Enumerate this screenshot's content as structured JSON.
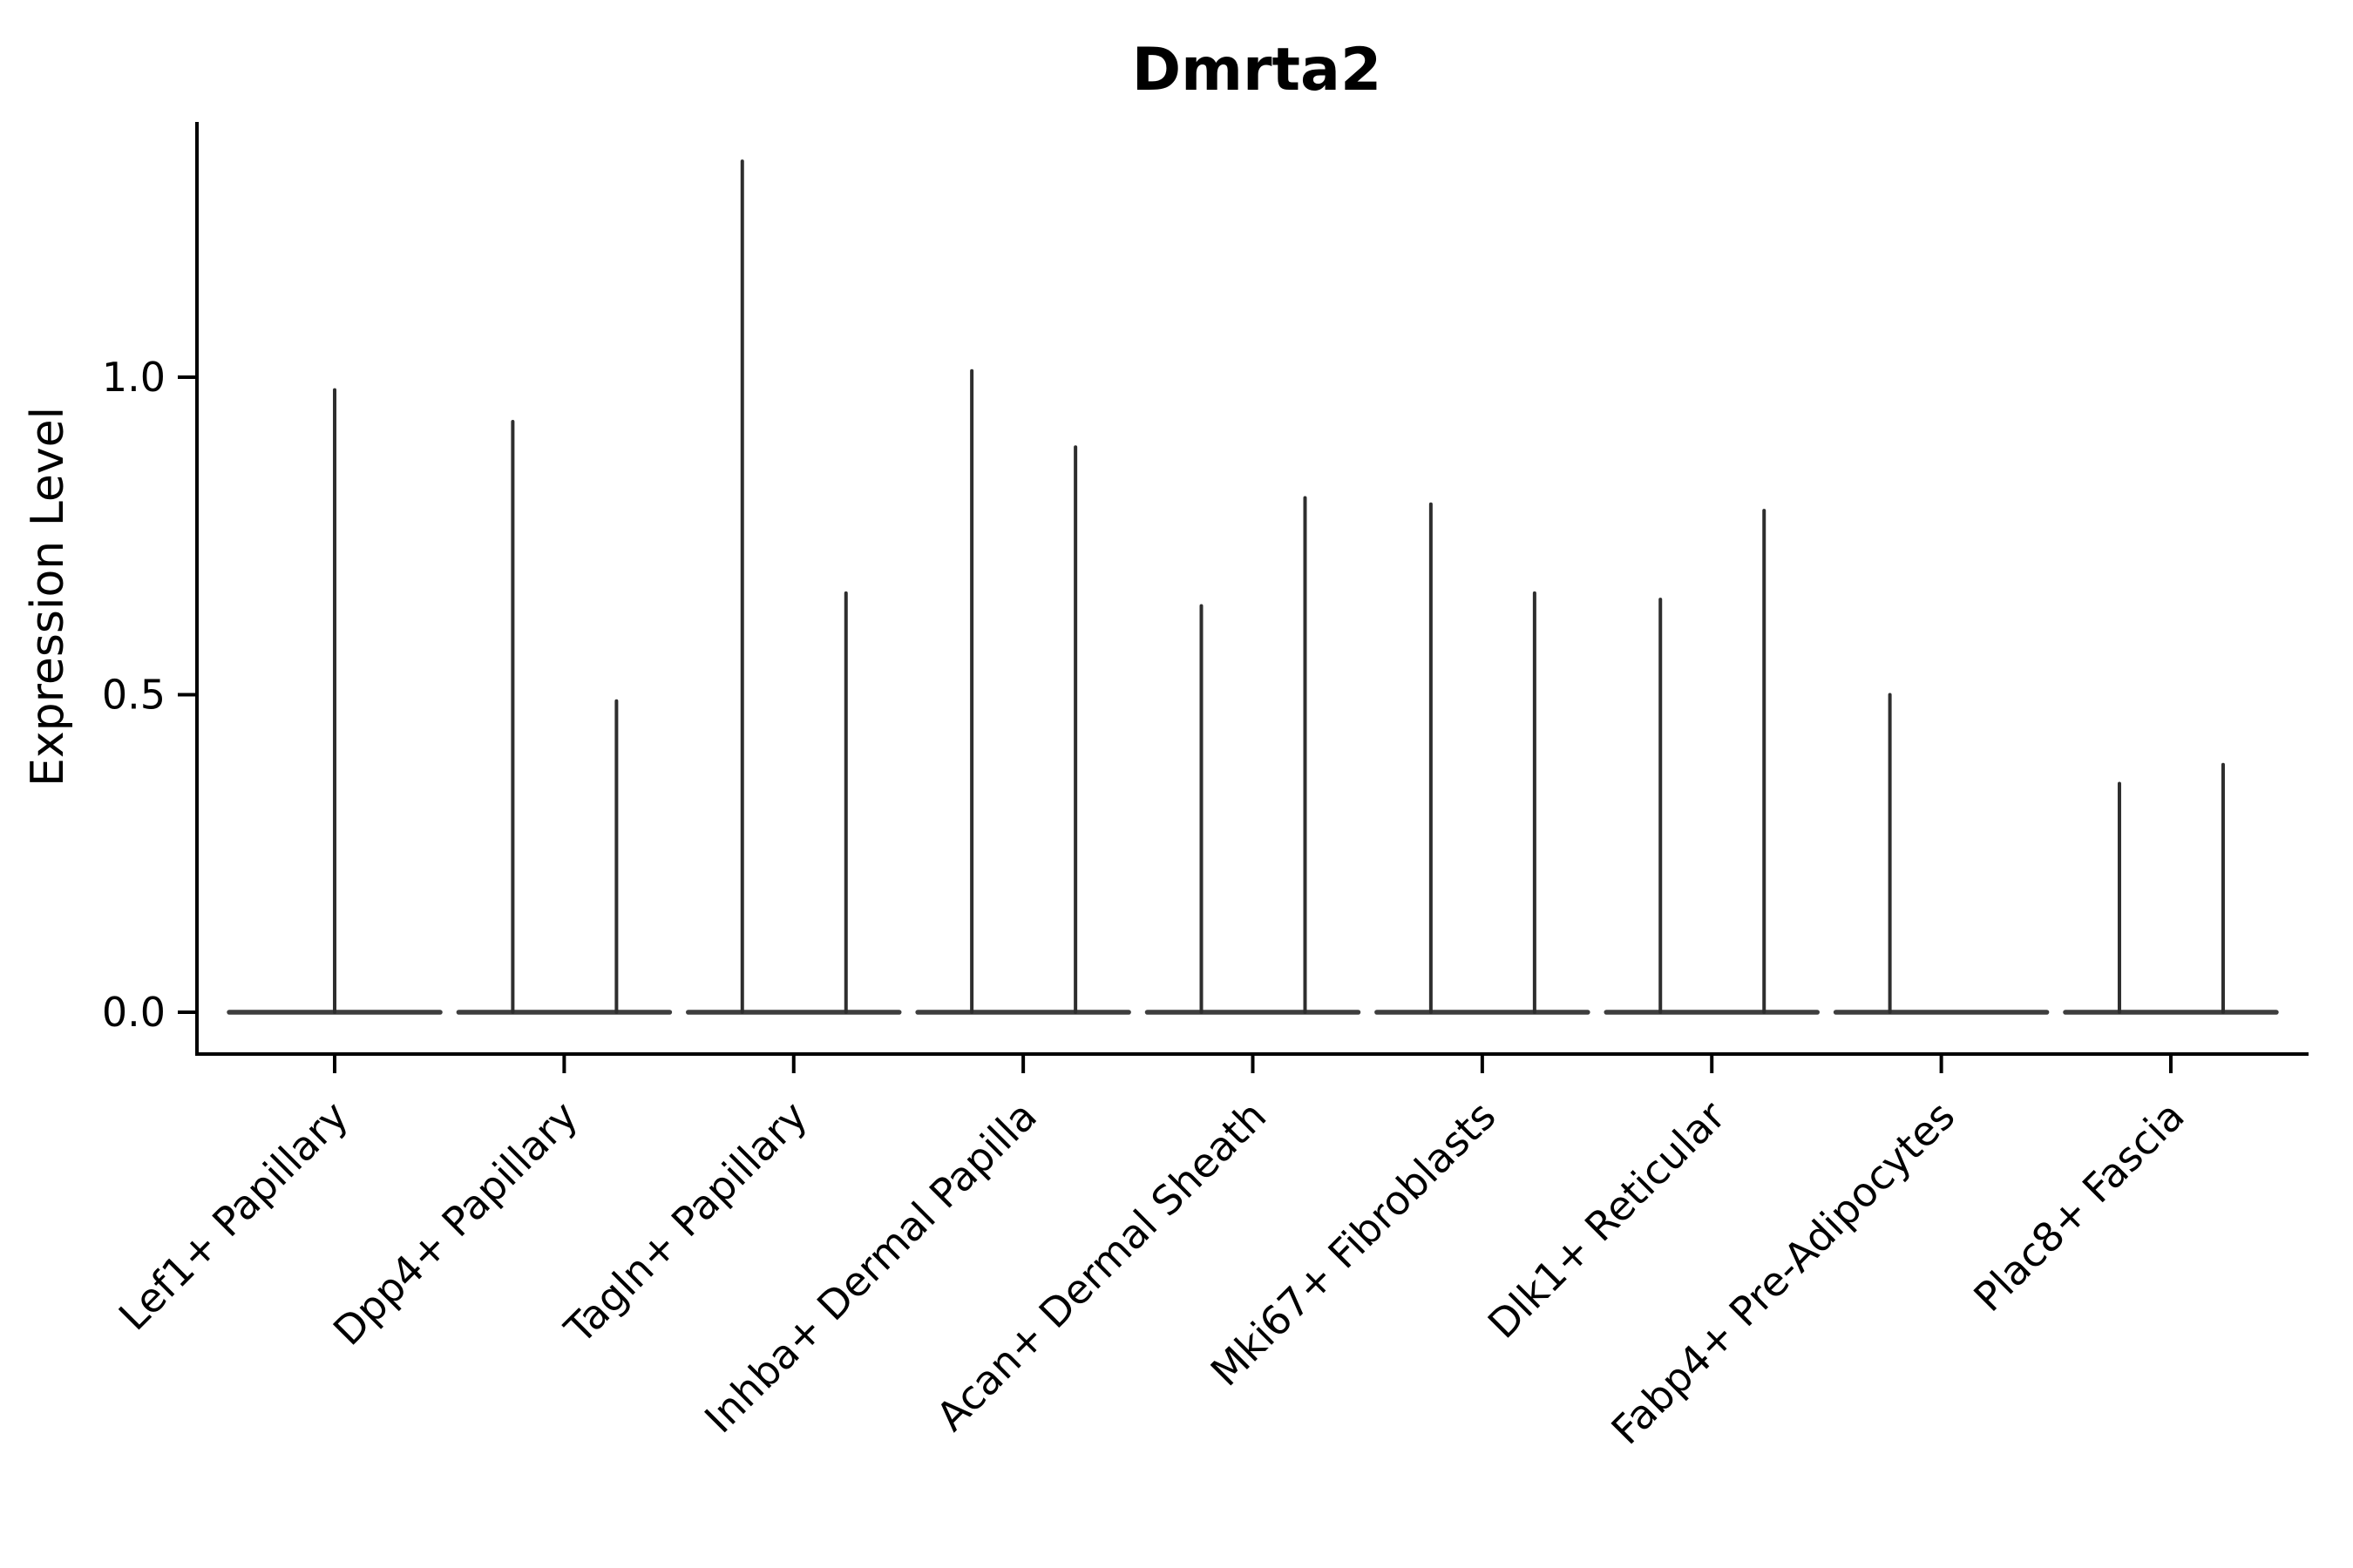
{
  "figure": {
    "title": "Dmrta2",
    "ylabel": "Expression Level"
  },
  "chart_data": {
    "type": "violin",
    "title": "Dmrta2",
    "xlabel": "",
    "ylabel": "Expression Level",
    "grid": false,
    "legend": "none",
    "y_axis": {
      "tick_values": [
        0.0,
        0.5,
        1.0
      ],
      "tick_labels": [
        "0.0",
        "0.5",
        "1.0"
      ],
      "range_shown": [
        -0.07,
        1.4
      ]
    },
    "categories": [
      "Lef1+ Papillary",
      "Dpp4+ Papillary",
      "Tagln+ Papillary",
      "Inhba+ Dermal Papilla",
      "Acan+ Dermal Sheath",
      "Mki67+ Fibroblasts",
      "Dlk1+ Reticular",
      "Fabp4+ Pre-Adipocytes",
      "Plac8+ Fascia"
    ],
    "violins": [
      {
        "category": "Lef1+ Papillary",
        "spikes": [
          {
            "slot": "center",
            "max": 0.98
          }
        ]
      },
      {
        "category": "Dpp4+ Papillary",
        "spikes": [
          {
            "slot": "left",
            "max": 0.93
          },
          {
            "slot": "right",
            "max": 0.49
          }
        ]
      },
      {
        "category": "Tagln+ Papillary",
        "spikes": [
          {
            "slot": "left",
            "max": 1.34
          },
          {
            "slot": "right",
            "max": 0.66
          }
        ]
      },
      {
        "category": "Inhba+ Dermal Papilla",
        "spikes": [
          {
            "slot": "left",
            "max": 1.01
          },
          {
            "slot": "right",
            "max": 0.89
          }
        ]
      },
      {
        "category": "Acan+ Dermal Sheath",
        "spikes": [
          {
            "slot": "left",
            "max": 0.64
          },
          {
            "slot": "right",
            "max": 0.81
          }
        ]
      },
      {
        "category": "Mki67+ Fibroblasts",
        "spikes": [
          {
            "slot": "left",
            "max": 0.8
          },
          {
            "slot": "right",
            "max": 0.66
          }
        ]
      },
      {
        "category": "Dlk1+ Reticular",
        "spikes": [
          {
            "slot": "left",
            "max": 0.65
          },
          {
            "slot": "right",
            "max": 0.79
          }
        ]
      },
      {
        "category": "Fabp4+ Pre-Adipocytes",
        "spikes": [
          {
            "slot": "left",
            "max": 0.5
          }
        ]
      },
      {
        "category": "Plac8+ Fascia",
        "spikes": [
          {
            "slot": "left",
            "max": 0.36
          },
          {
            "slot": "right",
            "max": 0.39
          }
        ]
      }
    ],
    "baseline_value": 0.0,
    "colors": {
      "ink": "#000000",
      "violin": "#2e2e2e",
      "background": "#ffffff"
    }
  }
}
